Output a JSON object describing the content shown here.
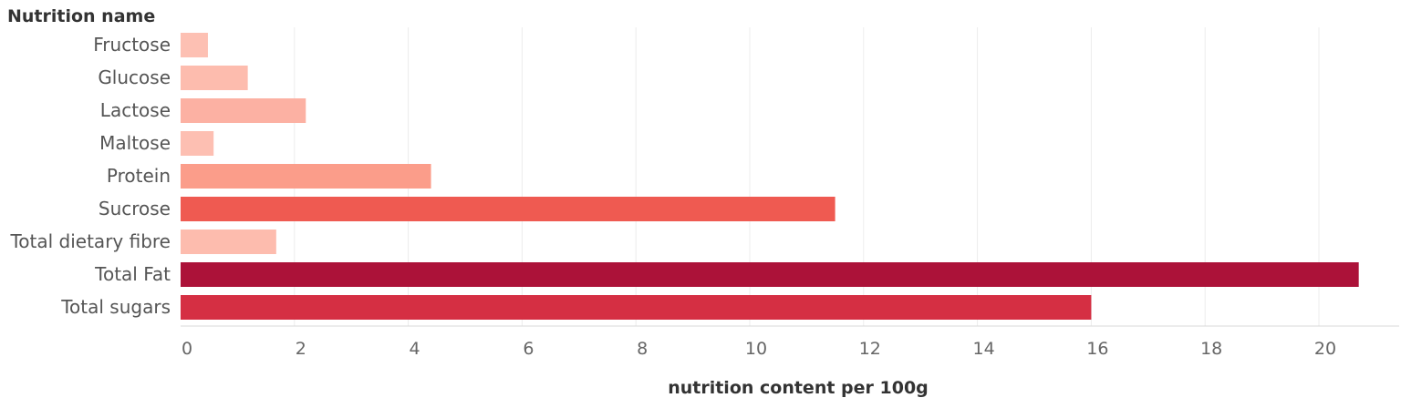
{
  "chart_data": {
    "type": "bar",
    "orientation": "horizontal",
    "header": "Nutrition name",
    "xlabel": "nutrition content per 100g",
    "xlim": [
      0,
      21.3
    ],
    "xticks": [
      "0",
      "2",
      "4",
      "6",
      "8",
      "10",
      "12",
      "14",
      "16",
      "18",
      "20"
    ],
    "categories": [
      "Fructose",
      "Glucose",
      "Lactose",
      "Maltose",
      "Protein",
      "Sucrose",
      "Total dietary fibre",
      "Total Fat",
      "Total sugars"
    ],
    "values": [
      0.48,
      1.18,
      2.2,
      0.58,
      4.4,
      11.5,
      1.68,
      20.7,
      16.0
    ],
    "colors": [
      "#fdc0b3",
      "#fdbcae",
      "#fcb1a3",
      "#fdbfb2",
      "#fb9d8a",
      "#ef5a51",
      "#fdbcae",
      "#ac1239",
      "#d52f43"
    ],
    "grid": true,
    "legend": "none"
  }
}
